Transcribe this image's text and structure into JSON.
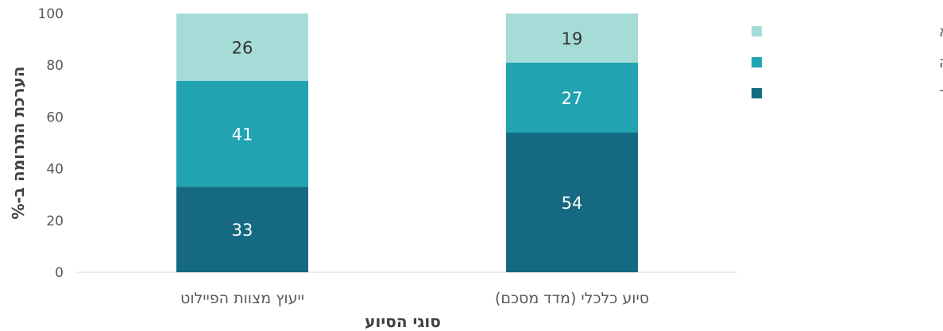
{
  "chart_data": {
    "type": "bar",
    "stacked": true,
    "categories": [
      "ייעוץ מצוות הפיילוט",
      "סיוע כלכלי (מדד מסכם)"
    ],
    "series": [
      {
        "name": "מידה רבה מאוד",
        "values": [
          33,
          54
        ],
        "color": "#156a82",
        "label_color": "#ffffff"
      },
      {
        "name": "מידה רבה",
        "values": [
          41,
          27
        ],
        "color": "#21a3b1",
        "label_color": "#ffffff"
      },
      {
        "name": "מידה מועטה או בכלל לא",
        "values": [
          26,
          19
        ],
        "color": "#a6dcd8",
        "label_color": "#333333"
      }
    ],
    "yticks": [
      0,
      20,
      40,
      60,
      80,
      100
    ],
    "ylim": [
      0,
      100
    ],
    "xlabel": "סוגי הסיוע",
    "ylabel": "הערכת התרומה ב-%",
    "legend_position": "right",
    "grid": false
  }
}
